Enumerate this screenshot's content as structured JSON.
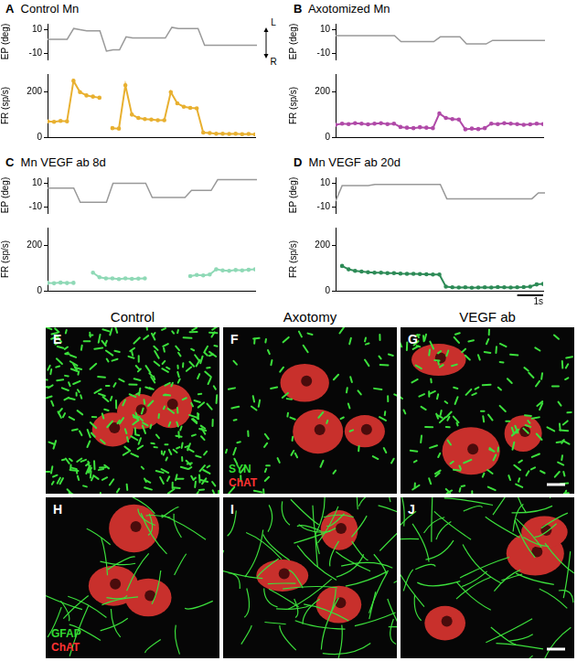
{
  "chart_data": [
    {
      "type": "line",
      "panel": "A",
      "title": "Control Mn",
      "x": [
        0,
        0.25,
        0.5,
        0.75,
        1,
        1.25,
        1.5,
        1.75,
        2,
        2.25,
        2.5,
        2.75,
        3,
        3.25,
        3.5,
        3.75,
        4,
        4.25,
        4.5,
        4.75,
        5,
        5.25,
        5.5,
        5.75,
        6,
        6.25,
        6.5,
        6.75,
        7,
        7.25,
        7.5,
        7.75,
        8
      ],
      "xlim": [
        0,
        8
      ],
      "ylim": [
        -15,
        15
      ],
      "yticks": [
        -10,
        10
      ],
      "y_label": "EP (deg)",
      "y2lim": [
        0,
        280
      ],
      "y2ticks": [
        0,
        200
      ],
      "y2_label": "FR (sp/s)",
      "tick_labels": "y",
      "grid": false,
      "annotations": [
        "L",
        "R"
      ],
      "series": [
        {
          "color": "#999999",
          "marker": "none",
          "line_style": "solid",
          "values": [
            2,
            2,
            2,
            2,
            11,
            10,
            9,
            9,
            9,
            -8,
            -7,
            -7,
            4,
            3,
            3,
            3,
            3,
            3,
            3,
            12,
            11,
            11,
            11,
            11,
            -3,
            -3,
            -3,
            -3,
            -3,
            -3,
            -3,
            -3,
            -3
          ]
        },
        {
          "axis": "y2",
          "color": "#e8b030",
          "marker": "circle",
          "line_style": "solid",
          "values": [
            70,
            68,
            72,
            70,
            250,
            200,
            185,
            180,
            175,
            null,
            40,
            38,
            230,
            100,
            85,
            80,
            78,
            75,
            75,
            200,
            150,
            135,
            130,
            128,
            20,
            18,
            15,
            15,
            14,
            15,
            13,
            14,
            12
          ]
        }
      ]
    },
    {
      "type": "line",
      "panel": "B",
      "title": "Axotomized Mn",
      "x": [
        0,
        0.25,
        0.5,
        0.75,
        1,
        1.25,
        1.5,
        1.75,
        2,
        2.25,
        2.5,
        2.75,
        3,
        3.25,
        3.5,
        3.75,
        4,
        4.25,
        4.5,
        4.75,
        5,
        5.25,
        5.5,
        5.75,
        6,
        6.25,
        6.5,
        6.75,
        7,
        7.25,
        7.5,
        7.75,
        8
      ],
      "xlim": [
        0,
        8
      ],
      "ylim": [
        -15,
        15
      ],
      "yticks": [
        -10,
        10
      ],
      "y_label": "EP (deg)",
      "y2lim": [
        0,
        280
      ],
      "y2ticks": [
        0,
        200
      ],
      "y2_label": "FR (sp/s)",
      "tick_labels": "y",
      "grid": false,
      "series": [
        {
          "color": "#999999",
          "marker": "none",
          "line_style": "solid",
          "values": [
            5,
            5,
            5,
            5,
            5,
            5,
            5,
            5,
            5,
            5,
            0,
            0,
            0,
            0,
            0,
            0,
            4,
            4,
            4,
            4,
            -2,
            -2,
            -2,
            -2,
            1,
            1,
            1,
            1,
            1,
            1,
            1,
            1,
            1
          ]
        },
        {
          "axis": "y2",
          "color": "#b04aa8",
          "marker": "circle",
          "line_style": "solid",
          "values": [
            55,
            60,
            58,
            62,
            60,
            57,
            60,
            62,
            58,
            60,
            45,
            42,
            40,
            44,
            42,
            40,
            105,
            85,
            80,
            78,
            35,
            38,
            36,
            40,
            60,
            58,
            62,
            60,
            58,
            55,
            57,
            60,
            58
          ]
        }
      ]
    },
    {
      "type": "line",
      "panel": "C",
      "title": "Mn VEGF ab 8d",
      "x": [
        0,
        0.25,
        0.5,
        0.75,
        1,
        1.25,
        1.5,
        1.75,
        2,
        2.25,
        2.5,
        2.75,
        3,
        3.25,
        3.5,
        3.75,
        4,
        4.25,
        4.5,
        4.75,
        5,
        5.25,
        5.5,
        5.75,
        6,
        6.25,
        6.5,
        6.75,
        7,
        7.25,
        7.5,
        7.75,
        8
      ],
      "xlim": [
        0,
        8
      ],
      "ylim": [
        -15,
        15
      ],
      "yticks": [
        -10,
        10
      ],
      "y_label": "EP (deg)",
      "y2lim": [
        0,
        280
      ],
      "y2ticks": [
        0,
        200
      ],
      "y2_label": "FR (sp/s)",
      "tick_labels": "y",
      "grid": false,
      "series": [
        {
          "color": "#999999",
          "marker": "none",
          "line_style": "solid",
          "values": [
            6,
            6,
            6,
            6,
            6,
            -6,
            -6,
            -6,
            -6,
            -6,
            10,
            10,
            10,
            10,
            10,
            10,
            -2,
            -2,
            -2,
            -2,
            -2,
            -2,
            4,
            4,
            4,
            4,
            13,
            13,
            13,
            13,
            13,
            13,
            13
          ]
        },
        {
          "axis": "y2",
          "color": "#8fd9b6",
          "marker": "circle",
          "line_style": "solid",
          "values": [
            35,
            33,
            36,
            34,
            35,
            null,
            null,
            80,
            60,
            55,
            55,
            52,
            55,
            53,
            54,
            55,
            null,
            null,
            null,
            null,
            null,
            null,
            65,
            70,
            68,
            72,
            95,
            90,
            88,
            92,
            90,
            93,
            95
          ]
        }
      ]
    },
    {
      "type": "line",
      "panel": "D",
      "title": "Mn VEGF ab 20d",
      "x": [
        0,
        0.25,
        0.5,
        0.75,
        1,
        1.25,
        1.5,
        1.75,
        2,
        2.25,
        2.5,
        2.75,
        3,
        3.25,
        3.5,
        3.75,
        4,
        4.25,
        4.5,
        4.75,
        5,
        5.25,
        5.5,
        5.75,
        6,
        6.25,
        6.5,
        6.75,
        7,
        7.25,
        7.5,
        7.75,
        8
      ],
      "xlim": [
        0,
        8
      ],
      "ylim": [
        -15,
        15
      ],
      "yticks": [
        -10,
        10
      ],
      "y_label": "EP (deg)",
      "y2lim": [
        0,
        280
      ],
      "y2ticks": [
        0,
        200
      ],
      "y2_label": "FR (sp/s)",
      "tick_labels": "y",
      "grid": false,
      "scalebar": {
        "value": 1,
        "label": "1s"
      },
      "series": [
        {
          "color": "#999999",
          "marker": "none",
          "line_style": "solid",
          "values": [
            -5,
            8,
            8,
            8,
            8,
            8,
            9,
            9,
            9,
            9,
            9,
            9,
            9,
            9,
            9,
            9,
            9,
            -3,
            -3,
            -3,
            -3,
            -3,
            -3,
            -3,
            -3,
            -3,
            -3,
            -3,
            -3,
            -3,
            -3,
            2,
            2
          ]
        },
        {
          "axis": "y2",
          "color": "#2e8b57",
          "marker": "circle",
          "line_style": "solid",
          "values": [
            null,
            110,
            95,
            88,
            85,
            82,
            80,
            80,
            78,
            78,
            76,
            75,
            75,
            74,
            73,
            72,
            72,
            18,
            15,
            14,
            15,
            13,
            14,
            15,
            14,
            16,
            15,
            14,
            15,
            16,
            18,
            28,
            30
          ]
        }
      ]
    }
  ],
  "images": {
    "columns": [
      "Control",
      "Axotomy",
      "VEGF ab"
    ],
    "rows": [
      {
        "panels": [
          {
            "letter": "E"
          },
          {
            "letter": "F",
            "stains": [
              {
                "text": "SYN",
                "color": "#33dd33"
              },
              {
                "text": "ChAT",
                "color": "#ff3333"
              }
            ]
          },
          {
            "letter": "G"
          }
        ]
      },
      {
        "panels": [
          {
            "letter": "H",
            "stains": [
              {
                "text": "GFAP",
                "color": "#33dd33"
              },
              {
                "text": "ChAT",
                "color": "#ff3333"
              }
            ]
          },
          {
            "letter": "I"
          },
          {
            "letter": "J"
          }
        ]
      }
    ]
  }
}
